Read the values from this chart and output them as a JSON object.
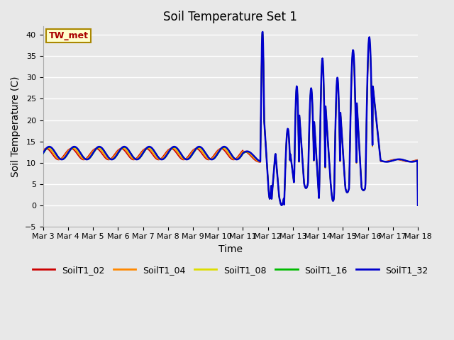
{
  "title": "Soil Temperature Set 1",
  "xlabel": "Time",
  "ylabel": "Soil Temperature (C)",
  "ylim": [
    -5,
    42
  ],
  "yticks": [
    -5,
    0,
    5,
    10,
    15,
    20,
    25,
    30,
    35,
    40
  ],
  "xtick_labels": [
    "Mar 3",
    "Mar 4",
    "Mar 5",
    "Mar 6",
    "Mar 7",
    "Mar 8",
    "Mar 9",
    "Mar 10",
    "Mar 11",
    "Mar 12",
    "Mar 13",
    "Mar 14",
    "Mar 15",
    "Mar 16",
    "Mar 17",
    "Mar 18"
  ],
  "legend_labels": [
    "SoilT1_02",
    "SoilT1_04",
    "SoilT1_08",
    "SoilT1_16",
    "SoilT1_32"
  ],
  "colors": [
    "#cc0000",
    "#ff8800",
    "#dddd00",
    "#00bb00",
    "#0000cc"
  ],
  "annotation_text": "TW_met",
  "annotation_color": "#aa0000",
  "annotation_bg": "#ffffcc",
  "annotation_border": "#aa8800",
  "plot_bg": "#e8e8e8",
  "fig_bg": "#e8e8e8",
  "grid_color": "#ffffff",
  "title_fontsize": 12,
  "axis_fontsize": 10,
  "tick_fontsize": 8,
  "legend_fontsize": 9,
  "num_points": 960
}
